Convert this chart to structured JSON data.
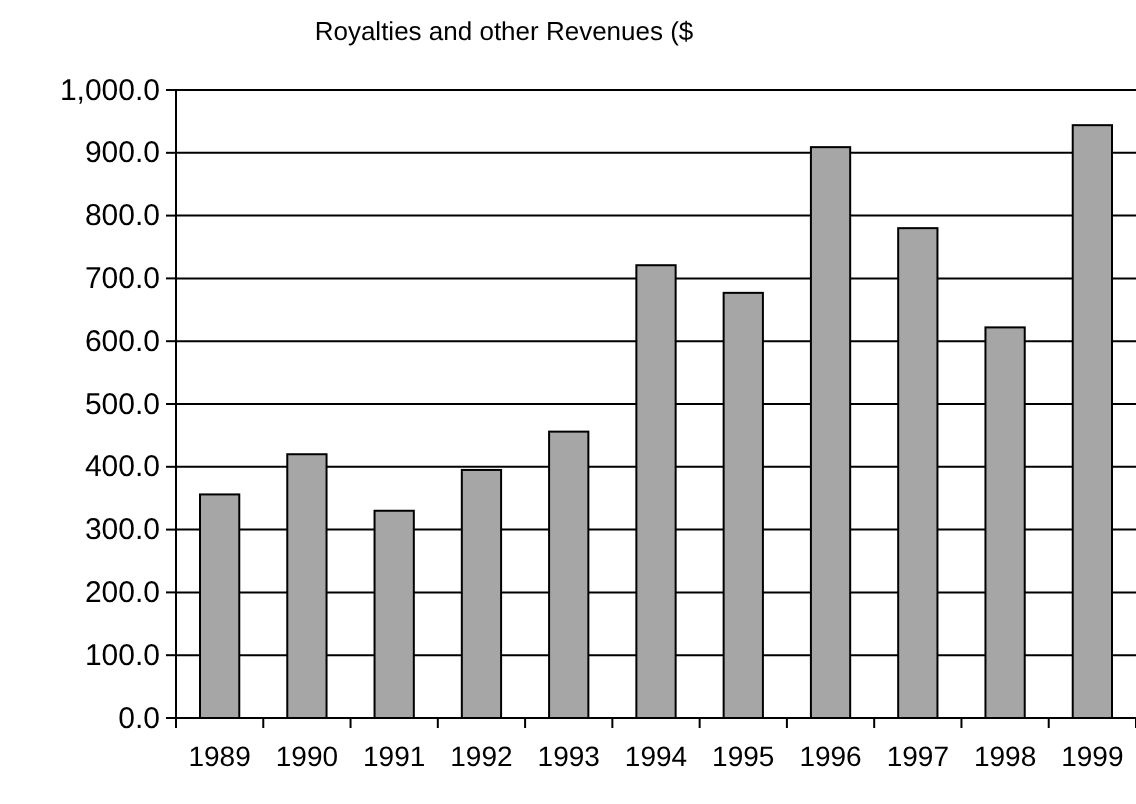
{
  "chart_data": {
    "type": "bar",
    "title": "Royalties and other Revenues ($",
    "categories": [
      "1989",
      "1990",
      "1991",
      "1992",
      "1993",
      "1994",
      "1995",
      "1996",
      "1997",
      "1998",
      "1999"
    ],
    "values": [
      356,
      420,
      330,
      395,
      456,
      721,
      677,
      909,
      780,
      622,
      944
    ],
    "color": "#a6a6a6",
    "ylim": [
      0,
      1000
    ],
    "yticks": [
      {
        "value": 0,
        "label": "0.0"
      },
      {
        "value": 100,
        "label": "100.0"
      },
      {
        "value": 200,
        "label": "200.0"
      },
      {
        "value": 300,
        "label": "300.0"
      },
      {
        "value": 400,
        "label": "400.0"
      },
      {
        "value": 500,
        "label": "500.0"
      },
      {
        "value": 600,
        "label": "600.0"
      },
      {
        "value": 700,
        "label": "700.0"
      },
      {
        "value": 800,
        "label": "800.0"
      },
      {
        "value": 900,
        "label": "900.0"
      },
      {
        "value": 1000,
        "label": "1,000.0"
      }
    ],
    "grid": "y"
  }
}
